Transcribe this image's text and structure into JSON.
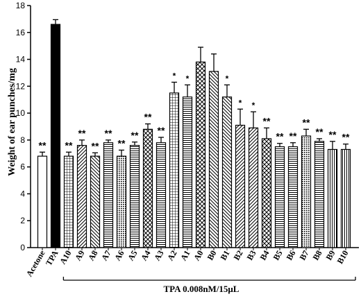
{
  "chart_data": {
    "type": "bar",
    "ylabel": "Weight of ear punches/mg",
    "ylim": [
      0,
      18
    ],
    "yticks": [
      0,
      2,
      4,
      6,
      8,
      10,
      12,
      14,
      16,
      18
    ],
    "group_label": "TPA 0.008nM/15μL",
    "grid": false,
    "categories": [
      "Acetone",
      "TPA",
      "A10",
      "A9",
      "A8",
      "A7",
      "A6",
      "A5",
      "A4",
      "A3",
      "A2",
      "A1",
      "A0",
      "B0",
      "B1",
      "B2",
      "B3",
      "B4",
      "B5",
      "B6",
      "B7",
      "B8",
      "B9",
      "B10"
    ],
    "values": [
      6.8,
      16.6,
      6.8,
      7.6,
      6.8,
      7.8,
      6.8,
      7.6,
      8.8,
      7.8,
      11.5,
      11.2,
      13.8,
      13.1,
      11.2,
      9.1,
      8.9,
      8.1,
      7.5,
      7.5,
      8.3,
      7.9,
      7.3,
      7.3
    ],
    "errors": [
      0.3,
      0.35,
      0.3,
      0.4,
      0.25,
      0.2,
      0.45,
      0.25,
      0.4,
      0.4,
      0.8,
      0.9,
      1.1,
      1.3,
      0.9,
      1.2,
      1.2,
      0.8,
      0.25,
      0.3,
      0.5,
      0.2,
      0.6,
      0.4
    ],
    "significance": [
      "**",
      "",
      "**",
      "**",
      "**",
      "**",
      "**",
      "**",
      "**",
      "**",
      "*",
      "*",
      "",
      "",
      "*",
      "*",
      "*",
      "**",
      "**",
      "**",
      "**",
      "**",
      "**",
      "**"
    ],
    "patterns": [
      "white",
      "black",
      "grid",
      "diag-right",
      "diag-left",
      "horizontal",
      "dots",
      "horizontal",
      "cross-diag",
      "horizontal",
      "grid",
      "horizontal",
      "cross-diag",
      "diag-left",
      "diag-left",
      "diag-right",
      "diag-right",
      "cross-diag",
      "horizontal",
      "horizontal",
      "dots",
      "horizontal",
      "vertical",
      "vertical"
    ]
  }
}
